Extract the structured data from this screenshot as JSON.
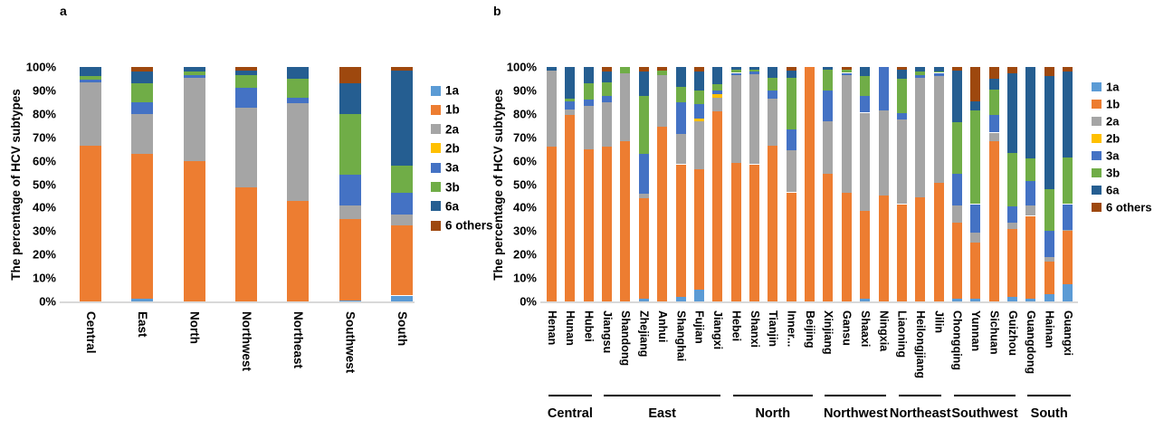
{
  "legend": {
    "items": [
      {
        "label": "1a",
        "color": "#5B9BD5"
      },
      {
        "label": "1b",
        "color": "#ED7D31"
      },
      {
        "label": "2a",
        "color": "#A5A5A5"
      },
      {
        "label": "2b",
        "color": "#FFC000"
      },
      {
        "label": "3a",
        "color": "#4472C4"
      },
      {
        "label": "3b",
        "color": "#70AD47"
      },
      {
        "label": "6a",
        "color": "#255E91"
      },
      {
        "label": "6 others",
        "color": "#9E480E"
      }
    ]
  },
  "axis_colors": {
    "baseline": "#d9d9d9",
    "text": "#000000"
  },
  "chart_data": [
    {
      "type": "bar",
      "stacked": true,
      "panel_letter": "a",
      "ylabel": "The percentage of HCV subtypes",
      "ylim": [
        0,
        100
      ],
      "y_tick_labels": [
        "0%",
        "10%",
        "20%",
        "30%",
        "40%",
        "50%",
        "60%",
        "70%",
        "80%",
        "90%",
        "100%"
      ],
      "grid": false,
      "legend_position": "right",
      "categories": [
        "Central",
        "East",
        "North",
        "Northwest",
        "Northeast",
        "Southwest",
        "South"
      ],
      "series": [
        {
          "name": "1a",
          "values": [
            0,
            1,
            0,
            0,
            0,
            0.5,
            2.5
          ]
        },
        {
          "name": "1b",
          "values": [
            66.5,
            62,
            60,
            48.5,
            43,
            34.5,
            30
          ]
        },
        {
          "name": "2a",
          "values": [
            27,
            17,
            35.5,
            34,
            41.5,
            6,
            4.5
          ]
        },
        {
          "name": "2b",
          "values": [
            0,
            0,
            0,
            0,
            0,
            0,
            0
          ]
        },
        {
          "name": "3a",
          "values": [
            1,
            5,
            1,
            8.5,
            2.5,
            13,
            9.5
          ]
        },
        {
          "name": "3b",
          "values": [
            1.5,
            8,
            1.5,
            5.5,
            8,
            26,
            11.5
          ]
        },
        {
          "name": "6a",
          "values": [
            4,
            5,
            2,
            2,
            5,
            13,
            40.5
          ]
        },
        {
          "name": "6 others",
          "values": [
            0,
            2,
            0,
            1.5,
            0,
            7,
            1.5
          ]
        }
      ]
    },
    {
      "type": "bar",
      "stacked": true,
      "panel_letter": "b",
      "ylabel": "The percentage of HCV subtypes",
      "ylim": [
        0,
        100
      ],
      "y_tick_labels": [
        "0%",
        "10%",
        "20%",
        "30%",
        "40%",
        "50%",
        "60%",
        "70%",
        "80%",
        "90%",
        "100%"
      ],
      "grid": false,
      "legend_position": "right",
      "categories": [
        "Henan",
        "Hunan",
        "Hubei",
        "Jiangsu",
        "Shandong",
        "Zhejiang",
        "Anhui",
        "Shanghai",
        "Fujian",
        "Jiangxi",
        "Hebei",
        "Shanxi",
        "Tianjin",
        "Inner...",
        "Beijing",
        "Xinjiang",
        "Gansu",
        "Shaaxi",
        "Ningxia",
        "Liaoning",
        "Heilongjiang",
        "Jilin",
        "Chongqing",
        "Yunnan",
        "Sichuan",
        "Guizhou",
        "Guangdong",
        "Hainan",
        "Guangxi"
      ],
      "groups": [
        {
          "label": "Central",
          "from": 0,
          "to": 2
        },
        {
          "label": "East",
          "from": 3,
          "to": 9
        },
        {
          "label": "North",
          "from": 10,
          "to": 14
        },
        {
          "label": "Northwest",
          "from": 15,
          "to": 18
        },
        {
          "label": "Northeast",
          "from": 19,
          "to": 21
        },
        {
          "label": "Southwest",
          "from": 22,
          "to": 25
        },
        {
          "label": "South",
          "from": 26,
          "to": 28
        }
      ],
      "series": [
        {
          "name": "1a",
          "values": [
            0,
            0,
            0,
            0,
            0,
            1,
            0,
            2,
            5,
            0,
            0,
            0,
            0,
            0,
            0,
            0,
            0,
            1,
            0,
            0,
            0,
            0,
            1,
            1,
            0,
            2,
            1,
            3,
            7.5
          ]
        },
        {
          "name": "1b",
          "values": [
            66,
            79.5,
            65,
            66,
            68.5,
            43,
            74.5,
            56.5,
            51.5,
            81,
            59,
            58.5,
            66.5,
            46.5,
            100,
            54.5,
            46.5,
            37.5,
            45,
            41.5,
            44.5,
            50.5,
            32.5,
            24,
            68.5,
            29,
            35.5,
            14,
            22.5
          ]
        },
        {
          "name": "2a",
          "values": [
            32.5,
            2.5,
            18.5,
            19,
            29,
            2,
            22,
            13,
            20.5,
            6,
            37.5,
            38.5,
            20,
            18,
            0,
            22.5,
            50,
            42,
            36.5,
            36,
            51,
            45.5,
            7.5,
            4.5,
            3.5,
            2.5,
            4.5,
            2,
            0.5
          ]
        },
        {
          "name": "2b",
          "values": [
            0,
            0,
            0,
            0,
            0,
            0,
            0,
            0,
            1,
            1.5,
            0,
            0,
            0,
            0,
            0,
            0,
            0,
            0,
            0,
            0,
            0,
            0,
            0,
            0,
            0,
            0,
            0,
            0,
            0
          ]
        },
        {
          "name": "3a",
          "values": [
            0,
            3.5,
            2.5,
            2.5,
            0,
            17,
            0,
            13.5,
            6,
            1.5,
            1,
            1,
            3.5,
            9,
            0,
            13,
            1,
            7,
            18.5,
            3,
            1,
            1.5,
            13.5,
            12,
            7.5,
            7,
            10.5,
            11,
            11
          ]
        },
        {
          "name": "3b",
          "values": [
            0,
            1,
            7,
            6,
            2.5,
            24.5,
            2,
            6.5,
            6,
            2.5,
            1.5,
            1,
            5.5,
            22,
            0,
            9,
            1.5,
            8.5,
            0,
            14.5,
            1.5,
            0.5,
            22,
            40,
            11,
            23,
            9.5,
            18,
            20
          ]
        },
        {
          "name": "6a",
          "values": [
            1.5,
            13.5,
            7,
            4.5,
            0,
            10.5,
            0,
            8.5,
            8,
            7.5,
            1,
            1,
            4.5,
            3,
            0,
            1,
            0,
            4,
            0,
            4,
            2,
            2,
            22,
            4,
            4.5,
            34,
            39,
            48,
            36.5
          ]
        },
        {
          "name": "6 others",
          "values": [
            0,
            0,
            0,
            2,
            0,
            2,
            1.5,
            0,
            2,
            0,
            0,
            0,
            0,
            1.5,
            0,
            0,
            1,
            0,
            0,
            1,
            0,
            0,
            1.5,
            14.5,
            5,
            2.5,
            0,
            4,
            2
          ]
        }
      ]
    }
  ]
}
